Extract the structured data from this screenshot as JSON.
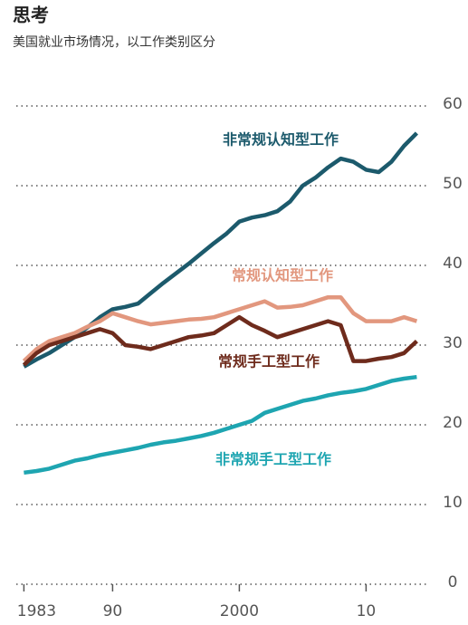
{
  "chart_data": {
    "type": "line",
    "title": "思考",
    "subtitle": "美国就业市场情况，以工作类别区分",
    "x": [
      1983,
      1984,
      1985,
      1986,
      1987,
      1988,
      1989,
      1990,
      1991,
      1992,
      1993,
      1994,
      1995,
      1996,
      1997,
      1998,
      1999,
      2000,
      2001,
      2002,
      2003,
      2004,
      2005,
      2006,
      2007,
      2008,
      2009,
      2010,
      2011,
      2012,
      2013,
      2014
    ],
    "series": [
      {
        "name": "非常规认知型工作",
        "color": "#1c5a6c",
        "values": [
          27.3,
          28.2,
          29,
          30,
          31,
          32.2,
          33.5,
          34.5,
          34.8,
          35.2,
          36.5,
          37.8,
          39,
          40.2,
          41.5,
          42.8,
          44,
          45.5,
          46,
          46.3,
          46.8,
          48,
          50,
          51,
          52.3,
          53.4,
          53,
          52,
          51.7,
          53,
          55,
          56.6
        ]
      },
      {
        "name": "常规认知型工作",
        "color": "#e2977e",
        "values": [
          28,
          29.5,
          30.5,
          31,
          31.5,
          32.3,
          33,
          34,
          33.5,
          33,
          32.6,
          32.8,
          33,
          33.2,
          33.3,
          33.5,
          34,
          34.5,
          35,
          35.5,
          34.7,
          34.8,
          35,
          35.5,
          36,
          36,
          34,
          33,
          33,
          33,
          33.5,
          33
        ]
      },
      {
        "name": "常规手工型工作",
        "color": "#6e2b1c",
        "values": [
          27.5,
          29,
          30,
          30.5,
          31,
          31.5,
          32,
          31.5,
          30,
          29.8,
          29.5,
          30,
          30.5,
          31,
          31.2,
          31.5,
          32.5,
          33.5,
          32.5,
          31.8,
          31,
          31.5,
          32,
          32.5,
          33,
          32.5,
          28,
          28,
          28.3,
          28.5,
          29,
          30.5
        ]
      },
      {
        "name": "非常规手工型工作",
        "color": "#1ea5b1",
        "values": [
          14,
          14.2,
          14.5,
          15,
          15.5,
          15.8,
          16.2,
          16.5,
          16.8,
          17.1,
          17.5,
          17.8,
          18,
          18.3,
          18.6,
          19,
          19.5,
          20,
          20.5,
          21.5,
          22,
          22.5,
          23,
          23.3,
          23.7,
          24,
          24.2,
          24.5,
          25,
          25.5,
          25.8,
          26
        ]
      }
    ],
    "xlim": [
      1982.4,
      2015.4
    ],
    "xticks": [
      1983,
      {
        "value": 1990,
        "label": "90"
      },
      2000,
      {
        "value": 2010,
        "label": "10"
      }
    ],
    "ylim": [
      0,
      60
    ],
    "yticks": [
      0,
      10,
      20,
      30,
      40,
      50,
      60
    ],
    "grid": true
  }
}
